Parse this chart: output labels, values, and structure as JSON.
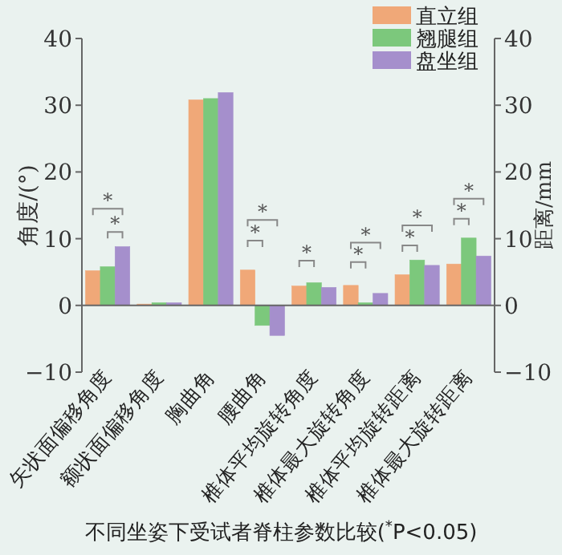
{
  "chart_data": {
    "type": "bar",
    "categories": [
      "矢状面偏移角度",
      "额状面偏移角度",
      "胸曲角",
      "腰曲角",
      "椎体平均旋转角度",
      "椎体最大旋转角度",
      "椎体平均旋转距离",
      "椎体最大旋转距离"
    ],
    "series": [
      {
        "name": "直立组",
        "color": "#f0a878",
        "values": [
          5.2,
          0.2,
          30.8,
          5.3,
          2.9,
          3.0,
          4.6,
          6.2
        ]
      },
      {
        "name": "翘腿组",
        "color": "#7cc87c",
        "values": [
          5.8,
          0.4,
          31.0,
          -3.0,
          3.4,
          0.4,
          6.8,
          10.1
        ]
      },
      {
        "name": "盘坐组",
        "color": "#a58fcc",
        "values": [
          8.8,
          0.4,
          31.9,
          -4.5,
          2.7,
          1.8,
          6.0,
          7.4
        ]
      }
    ],
    "ylabel": "角度/(°)",
    "y2label": "距离/mm",
    "ylim": [
      -10,
      40
    ],
    "yticks": [
      {
        "value": -10,
        "label": "−10"
      },
      0,
      10,
      20,
      30,
      40
    ],
    "y2lim": [
      -10,
      40
    ],
    "y2ticks": [
      {
        "value": -10,
        "label": "−10"
      },
      0,
      10,
      20,
      30,
      40
    ],
    "legend": "top right",
    "annotations": [
      "不同坐姿下受试者脊柱参数比较($^{*}$P<0.05)",
      "*",
      "*",
      "*",
      "*",
      "*",
      "*",
      "*",
      "*",
      "*",
      "*",
      "*"
    ]
  }
}
